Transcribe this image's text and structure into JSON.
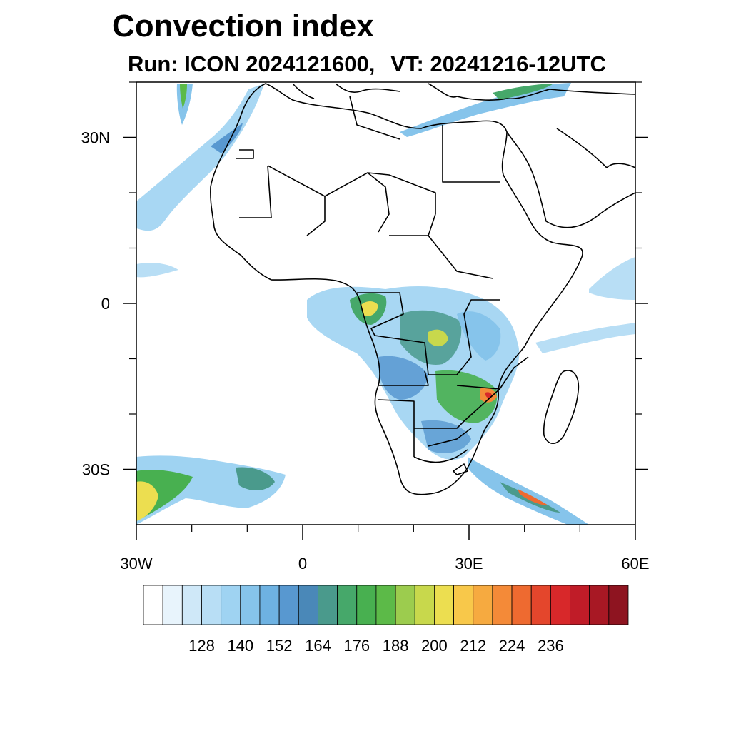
{
  "title": "Convection index",
  "subtitle": {
    "run_label": "Run: ICON 2024121600,",
    "vt_label": "VT: 20241216-12UTC"
  },
  "map": {
    "lon_range": [
      -30,
      60
    ],
    "lat_range": [
      -40,
      40
    ],
    "lat_ticks": [
      {
        "value": 30,
        "label": "30N"
      },
      {
        "value": 0,
        "label": "0"
      },
      {
        "value": -30,
        "label": "30S"
      }
    ],
    "lon_ticks": [
      {
        "value": -30,
        "label": "30W"
      },
      {
        "value": 0,
        "label": "0"
      },
      {
        "value": 30,
        "label": "30E"
      },
      {
        "value": 60,
        "label": "60E"
      }
    ],
    "minor_tick_step_deg": 10
  },
  "colorbar": {
    "labels": [
      "128",
      "140",
      "152",
      "164",
      "176",
      "188",
      "200",
      "212",
      "224",
      "236"
    ],
    "colors": [
      "#ffffff",
      "#e8f4fc",
      "#cfe8f8",
      "#b8def5",
      "#9fd3f2",
      "#86c4eb",
      "#6eb2e2",
      "#5898d0",
      "#4a88b8",
      "#4a9a8c",
      "#46a86a",
      "#48b050",
      "#5cba48",
      "#9ccc4e",
      "#c8d84c",
      "#ecde50",
      "#f8c84a",
      "#f6aa40",
      "#f48a38",
      "#ee6a30",
      "#e4462c",
      "#d8282a",
      "#c01c28",
      "#a81824",
      "#8e1420"
    ]
  },
  "colors": {
    "coastline": "#000000",
    "frame": "#000000"
  }
}
